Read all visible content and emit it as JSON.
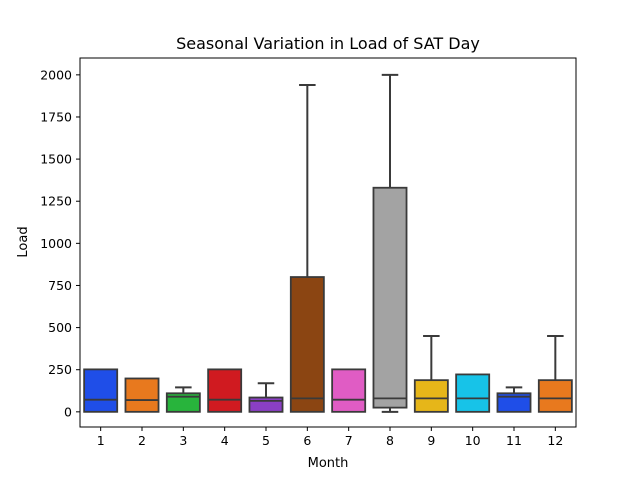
{
  "chart_data": {
    "type": "box",
    "title": "Seasonal Variation in Load of SAT Day",
    "xlabel": "Month",
    "ylabel": "Load",
    "categories": [
      "1",
      "2",
      "3",
      "4",
      "5",
      "6",
      "7",
      "8",
      "9",
      "10",
      "11",
      "12"
    ],
    "ylim": [
      -90,
      2100
    ],
    "yticks": [
      0,
      250,
      500,
      750,
      1000,
      1250,
      1500,
      1750,
      2000
    ],
    "grid": false,
    "boxes": [
      {
        "category": "1",
        "whisker_low": 0,
        "q1": 0,
        "median": 72,
        "q3": 252,
        "whisker_high": 252,
        "color": "#1f4ee8"
      },
      {
        "category": "2",
        "whisker_low": 0,
        "q1": 0,
        "median": 70,
        "q3": 198,
        "whisker_high": 198,
        "color": "#e8791e"
      },
      {
        "category": "3",
        "whisker_low": 0,
        "q1": 0,
        "median": 90,
        "q3": 110,
        "whisker_high": 145,
        "color": "#28b43c"
      },
      {
        "category": "4",
        "whisker_low": 0,
        "q1": 0,
        "median": 72,
        "q3": 252,
        "whisker_high": 252,
        "color": "#d01a20"
      },
      {
        "category": "5",
        "whisker_low": 0,
        "q1": 0,
        "median": 65,
        "q3": 85,
        "whisker_high": 170,
        "color": "#8a3fc4"
      },
      {
        "category": "6",
        "whisker_low": 0,
        "q1": 0,
        "median": 80,
        "q3": 800,
        "whisker_high": 1940,
        "color": "#8b4512"
      },
      {
        "category": "7",
        "whisker_low": 0,
        "q1": 0,
        "median": 72,
        "q3": 252,
        "whisker_high": 252,
        "color": "#e05cc4"
      },
      {
        "category": "8",
        "whisker_low": 0,
        "q1": 25,
        "median": 80,
        "q3": 1330,
        "whisker_high": 2000,
        "color": "#a3a3a3"
      },
      {
        "category": "9",
        "whisker_low": 0,
        "q1": 0,
        "median": 80,
        "q3": 188,
        "whisker_high": 450,
        "color": "#e6b619"
      },
      {
        "category": "10",
        "whisker_low": 0,
        "q1": 0,
        "median": 80,
        "q3": 222,
        "whisker_high": 222,
        "color": "#17c3e8"
      },
      {
        "category": "11",
        "whisker_low": 0,
        "q1": 0,
        "median": 90,
        "q3": 110,
        "whisker_high": 145,
        "color": "#1f4ee8"
      },
      {
        "category": "12",
        "whisker_low": 0,
        "q1": 0,
        "median": 80,
        "q3": 188,
        "whisker_high": 450,
        "color": "#e8791e"
      }
    ]
  }
}
